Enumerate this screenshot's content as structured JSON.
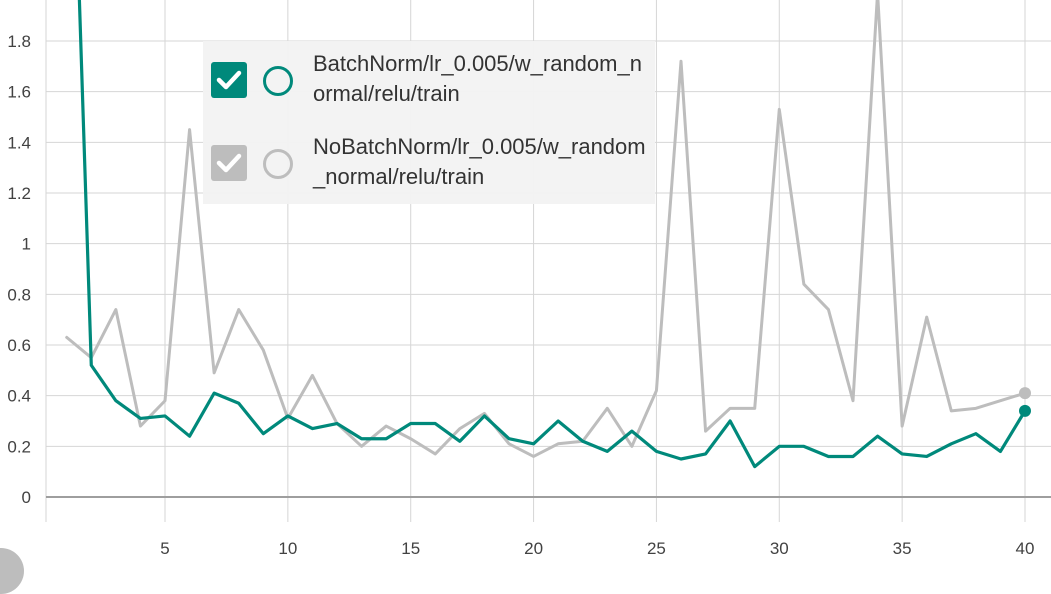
{
  "chart_data": {
    "type": "line",
    "x_ticks": [
      5,
      10,
      15,
      20,
      25,
      30,
      35,
      40
    ],
    "y_ticks": [
      "0",
      "0.2",
      "0.4",
      "0.6",
      "0.8",
      "1",
      "1.2",
      "1.4",
      "1.6",
      "1.8"
    ],
    "xlim": [
      0.2,
      41
    ],
    "ylim": [
      -0.1,
      1.95
    ],
    "grid": true,
    "legend_placement": "top-left",
    "series": [
      {
        "name": "NoBatchNorm/lr_0.005/w_random_normal/relu/train",
        "color": "#bdbdbd",
        "checked": true,
        "x": [
          1,
          2,
          3,
          4,
          5,
          6,
          7,
          8,
          9,
          10,
          11,
          12,
          13,
          14,
          15,
          16,
          17,
          18,
          19,
          20,
          21,
          22,
          23,
          24,
          25,
          26,
          27,
          28,
          29,
          30,
          31,
          32,
          33,
          34,
          35,
          36,
          37,
          38,
          39,
          40
        ],
        "values": [
          0.63,
          0.55,
          0.74,
          0.28,
          0.38,
          1.45,
          0.49,
          0.74,
          0.58,
          0.31,
          0.48,
          0.29,
          0.2,
          0.28,
          0.23,
          0.17,
          0.27,
          0.33,
          0.21,
          0.16,
          0.21,
          0.22,
          0.35,
          0.2,
          0.42,
          1.72,
          0.26,
          0.35,
          0.35,
          1.53,
          0.84,
          0.74,
          0.38,
          1.99,
          0.28,
          0.71,
          0.34,
          0.35,
          0.38,
          0.41
        ]
      },
      {
        "name": "BatchNorm/lr_0.005/w_random_normal/relu/train",
        "color": "#00897b",
        "checked": true,
        "x": [
          1,
          2,
          3,
          4,
          5,
          6,
          7,
          8,
          9,
          10,
          11,
          12,
          13,
          14,
          15,
          16,
          17,
          18,
          19,
          20,
          21,
          22,
          23,
          24,
          25,
          26,
          27,
          28,
          29,
          30,
          31,
          32,
          33,
          34,
          35,
          36,
          37,
          38,
          39,
          40
        ],
        "values": [
          3.5,
          0.52,
          0.38,
          0.31,
          0.32,
          0.24,
          0.41,
          0.37,
          0.25,
          0.32,
          0.27,
          0.29,
          0.23,
          0.23,
          0.29,
          0.29,
          0.22,
          0.32,
          0.23,
          0.21,
          0.3,
          0.22,
          0.18,
          0.26,
          0.18,
          0.15,
          0.17,
          0.3,
          0.12,
          0.2,
          0.2,
          0.16,
          0.16,
          0.24,
          0.17,
          0.16,
          0.21,
          0.25,
          0.18,
          0.34
        ]
      }
    ]
  },
  "legend": {
    "items": [
      {
        "label": "BatchNorm/lr_0.005/w_random_normal/relu/train",
        "color": "#00897b",
        "checkbox_color": "#00897b",
        "checked": true
      },
      {
        "label": "NoBatchNorm/lr_0.005/w_random_normal/relu/train",
        "color": "#bdbdbd",
        "checkbox_color": "#bdbdbd",
        "checked": true
      }
    ]
  }
}
